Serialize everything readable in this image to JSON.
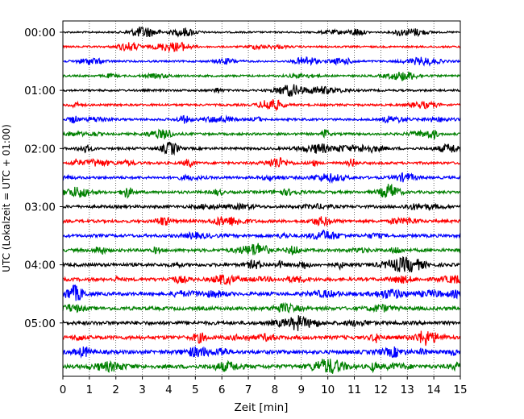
{
  "chart_data": {
    "type": "line",
    "title": "",
    "xlabel": "Zeit  [min]",
    "ylabel": "UTC (Lokalzeit = UTC + 01:00)",
    "xlim": [
      0,
      15
    ],
    "x_ticks": [
      0,
      1,
      2,
      3,
      4,
      5,
      6,
      7,
      8,
      9,
      10,
      11,
      12,
      13,
      14,
      15
    ],
    "x_tick_labels": [
      "0",
      "1",
      "2",
      "3",
      "4",
      "5",
      "6",
      "7",
      "8",
      "9",
      "10",
      "11",
      "12",
      "13",
      "14",
      "15"
    ],
    "y_tick_labels": [
      "00:00",
      "01:00",
      "02:00",
      "03:00",
      "04:00",
      "05:00"
    ],
    "trace_interval_minutes": 15,
    "trace_count": 24,
    "trace_colors_cycle": [
      "#000000",
      "#ff0000",
      "#0000ff",
      "#008000"
    ],
    "vertical_grid": "dotted",
    "legend": "none"
  }
}
